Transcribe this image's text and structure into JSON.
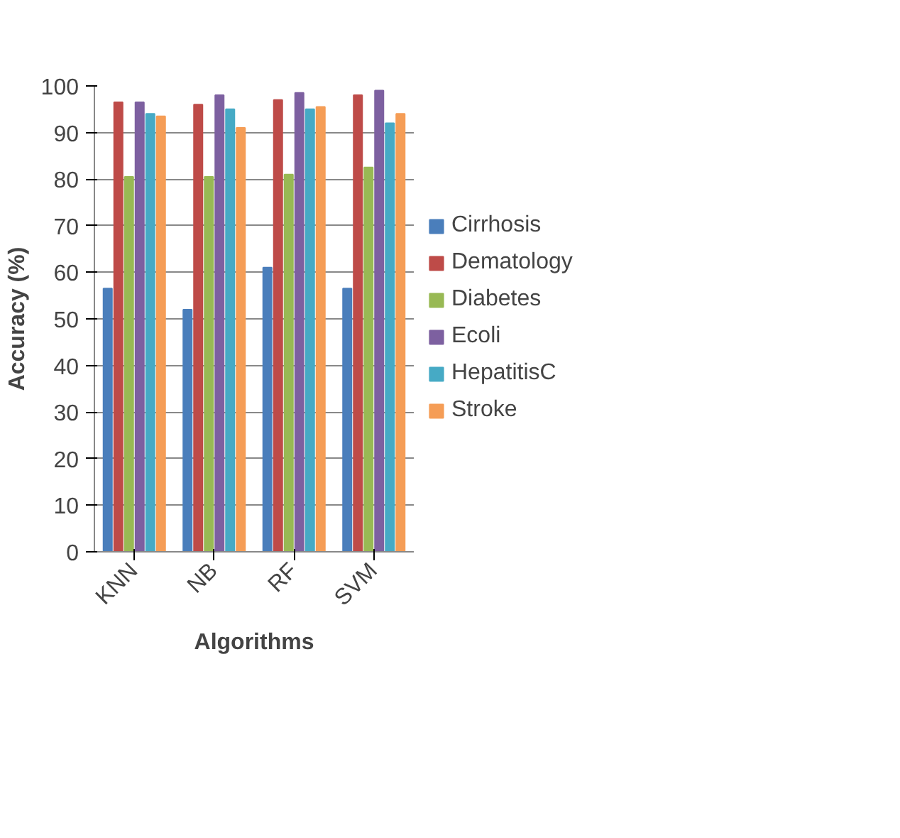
{
  "chart_data": {
    "type": "bar",
    "xlabel": "Algorithms",
    "ylabel": "Accuracy (%)",
    "categories": [
      "KNN",
      "NB",
      "RF",
      "SVM"
    ],
    "series": [
      {
        "name": "Cirrhosis",
        "color": "#4a7ebb",
        "values": [
          56.5,
          52,
          61,
          56.5
        ]
      },
      {
        "name": "Dematology",
        "color": "#be4b48",
        "values": [
          96.5,
          96,
          97,
          98
        ]
      },
      {
        "name": "Diabetes",
        "color": "#98b954",
        "values": [
          80.5,
          80.5,
          81,
          82.5
        ]
      },
      {
        "name": "Ecoli",
        "color": "#7d60a0",
        "values": [
          96.5,
          98,
          98.5,
          99
        ]
      },
      {
        "name": "HepatitisC",
        "color": "#46aac5",
        "values": [
          94,
          95,
          95,
          92
        ]
      },
      {
        "name": "Stroke",
        "color": "#f59d56",
        "values": [
          93.5,
          91,
          95.5,
          94
        ]
      }
    ],
    "ylim": [
      0,
      100
    ],
    "yticks": [
      0,
      10,
      20,
      30,
      40,
      50,
      60,
      70,
      80,
      90,
      100
    ],
    "grid": "y",
    "legend": "right"
  }
}
